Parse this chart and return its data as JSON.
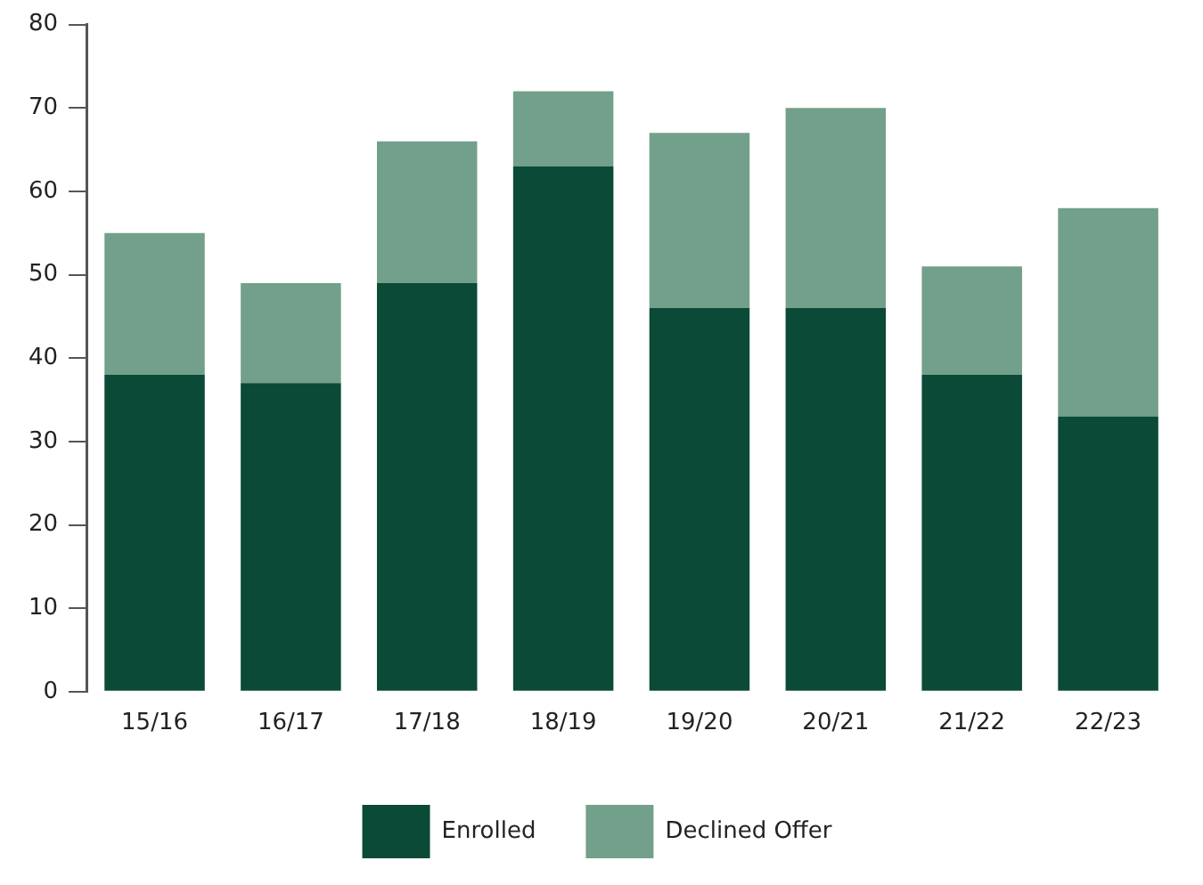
{
  "chart_data": {
    "type": "bar",
    "stacked": true,
    "categories": [
      "15/16",
      "16/17",
      "17/18",
      "18/19",
      "19/20",
      "20/21",
      "21/22",
      "22/23"
    ],
    "series": [
      {
        "name": "Enrolled",
        "color": "#0a4a37",
        "values": [
          38,
          37,
          49,
          63,
          46,
          46,
          38,
          33
        ]
      },
      {
        "name": "Declined Offer",
        "color": "#72a08a",
        "values": [
          17,
          12,
          17,
          9,
          21,
          24,
          13,
          25
        ]
      }
    ],
    "ylim": [
      0,
      80
    ],
    "yticks": [
      0,
      10,
      20,
      30,
      40,
      50,
      60,
      70,
      80
    ],
    "grid": false,
    "legend": "bottom"
  }
}
